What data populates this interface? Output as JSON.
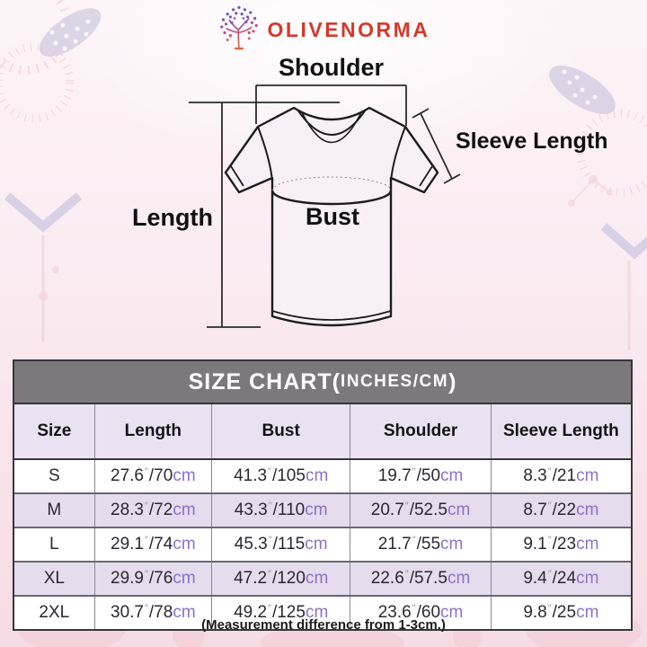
{
  "brand": {
    "name": "OLIVENORMA"
  },
  "diagram": {
    "shoulder_label": "Shoulder",
    "sleeve_label": "Sleeve Length",
    "length_label": "Length",
    "bust_label": "Bust"
  },
  "chart": {
    "title_main": "SIZE CHART(",
    "title_unit": "INCHES/CM",
    "title_close": ")",
    "columns": [
      "Size",
      "Length",
      "Bust",
      "Shoulder",
      "Sleeve Length"
    ],
    "inch_mark": "″",
    "unit_cm": "cm",
    "rows": [
      {
        "size": "S",
        "cells": [
          [
            "27.6",
            "70"
          ],
          [
            "41.3",
            "105"
          ],
          [
            "19.7",
            "50"
          ],
          [
            "8.3",
            "21"
          ]
        ]
      },
      {
        "size": "M",
        "cells": [
          [
            "28.3",
            "72"
          ],
          [
            "43.3",
            "110"
          ],
          [
            "20.7",
            "52.5"
          ],
          [
            "8.7",
            "22"
          ]
        ]
      },
      {
        "size": "L",
        "cells": [
          [
            "29.1",
            "74"
          ],
          [
            "45.3",
            "115"
          ],
          [
            "21.7",
            "55"
          ],
          [
            "9.1",
            "23"
          ]
        ]
      },
      {
        "size": "XL",
        "cells": [
          [
            "29.9",
            "76"
          ],
          [
            "47.2",
            "120"
          ],
          [
            "22.6",
            "57.5"
          ],
          [
            "9.4",
            "24"
          ]
        ]
      },
      {
        "size": "2XL",
        "cells": [
          [
            "30.7",
            "78"
          ],
          [
            "49.2",
            "125"
          ],
          [
            "23.6",
            "60"
          ],
          [
            "9.8",
            "25"
          ]
        ]
      }
    ]
  },
  "footer": {
    "note": "(Measurement difference from 1-3cm.)"
  },
  "colors": {
    "accent_red": "#d6382c",
    "cm_purple": "#8b72c5",
    "header_gray": "#7c797c",
    "row_lavender": "#e5dcee",
    "background_pink": "#f8e2e9"
  }
}
